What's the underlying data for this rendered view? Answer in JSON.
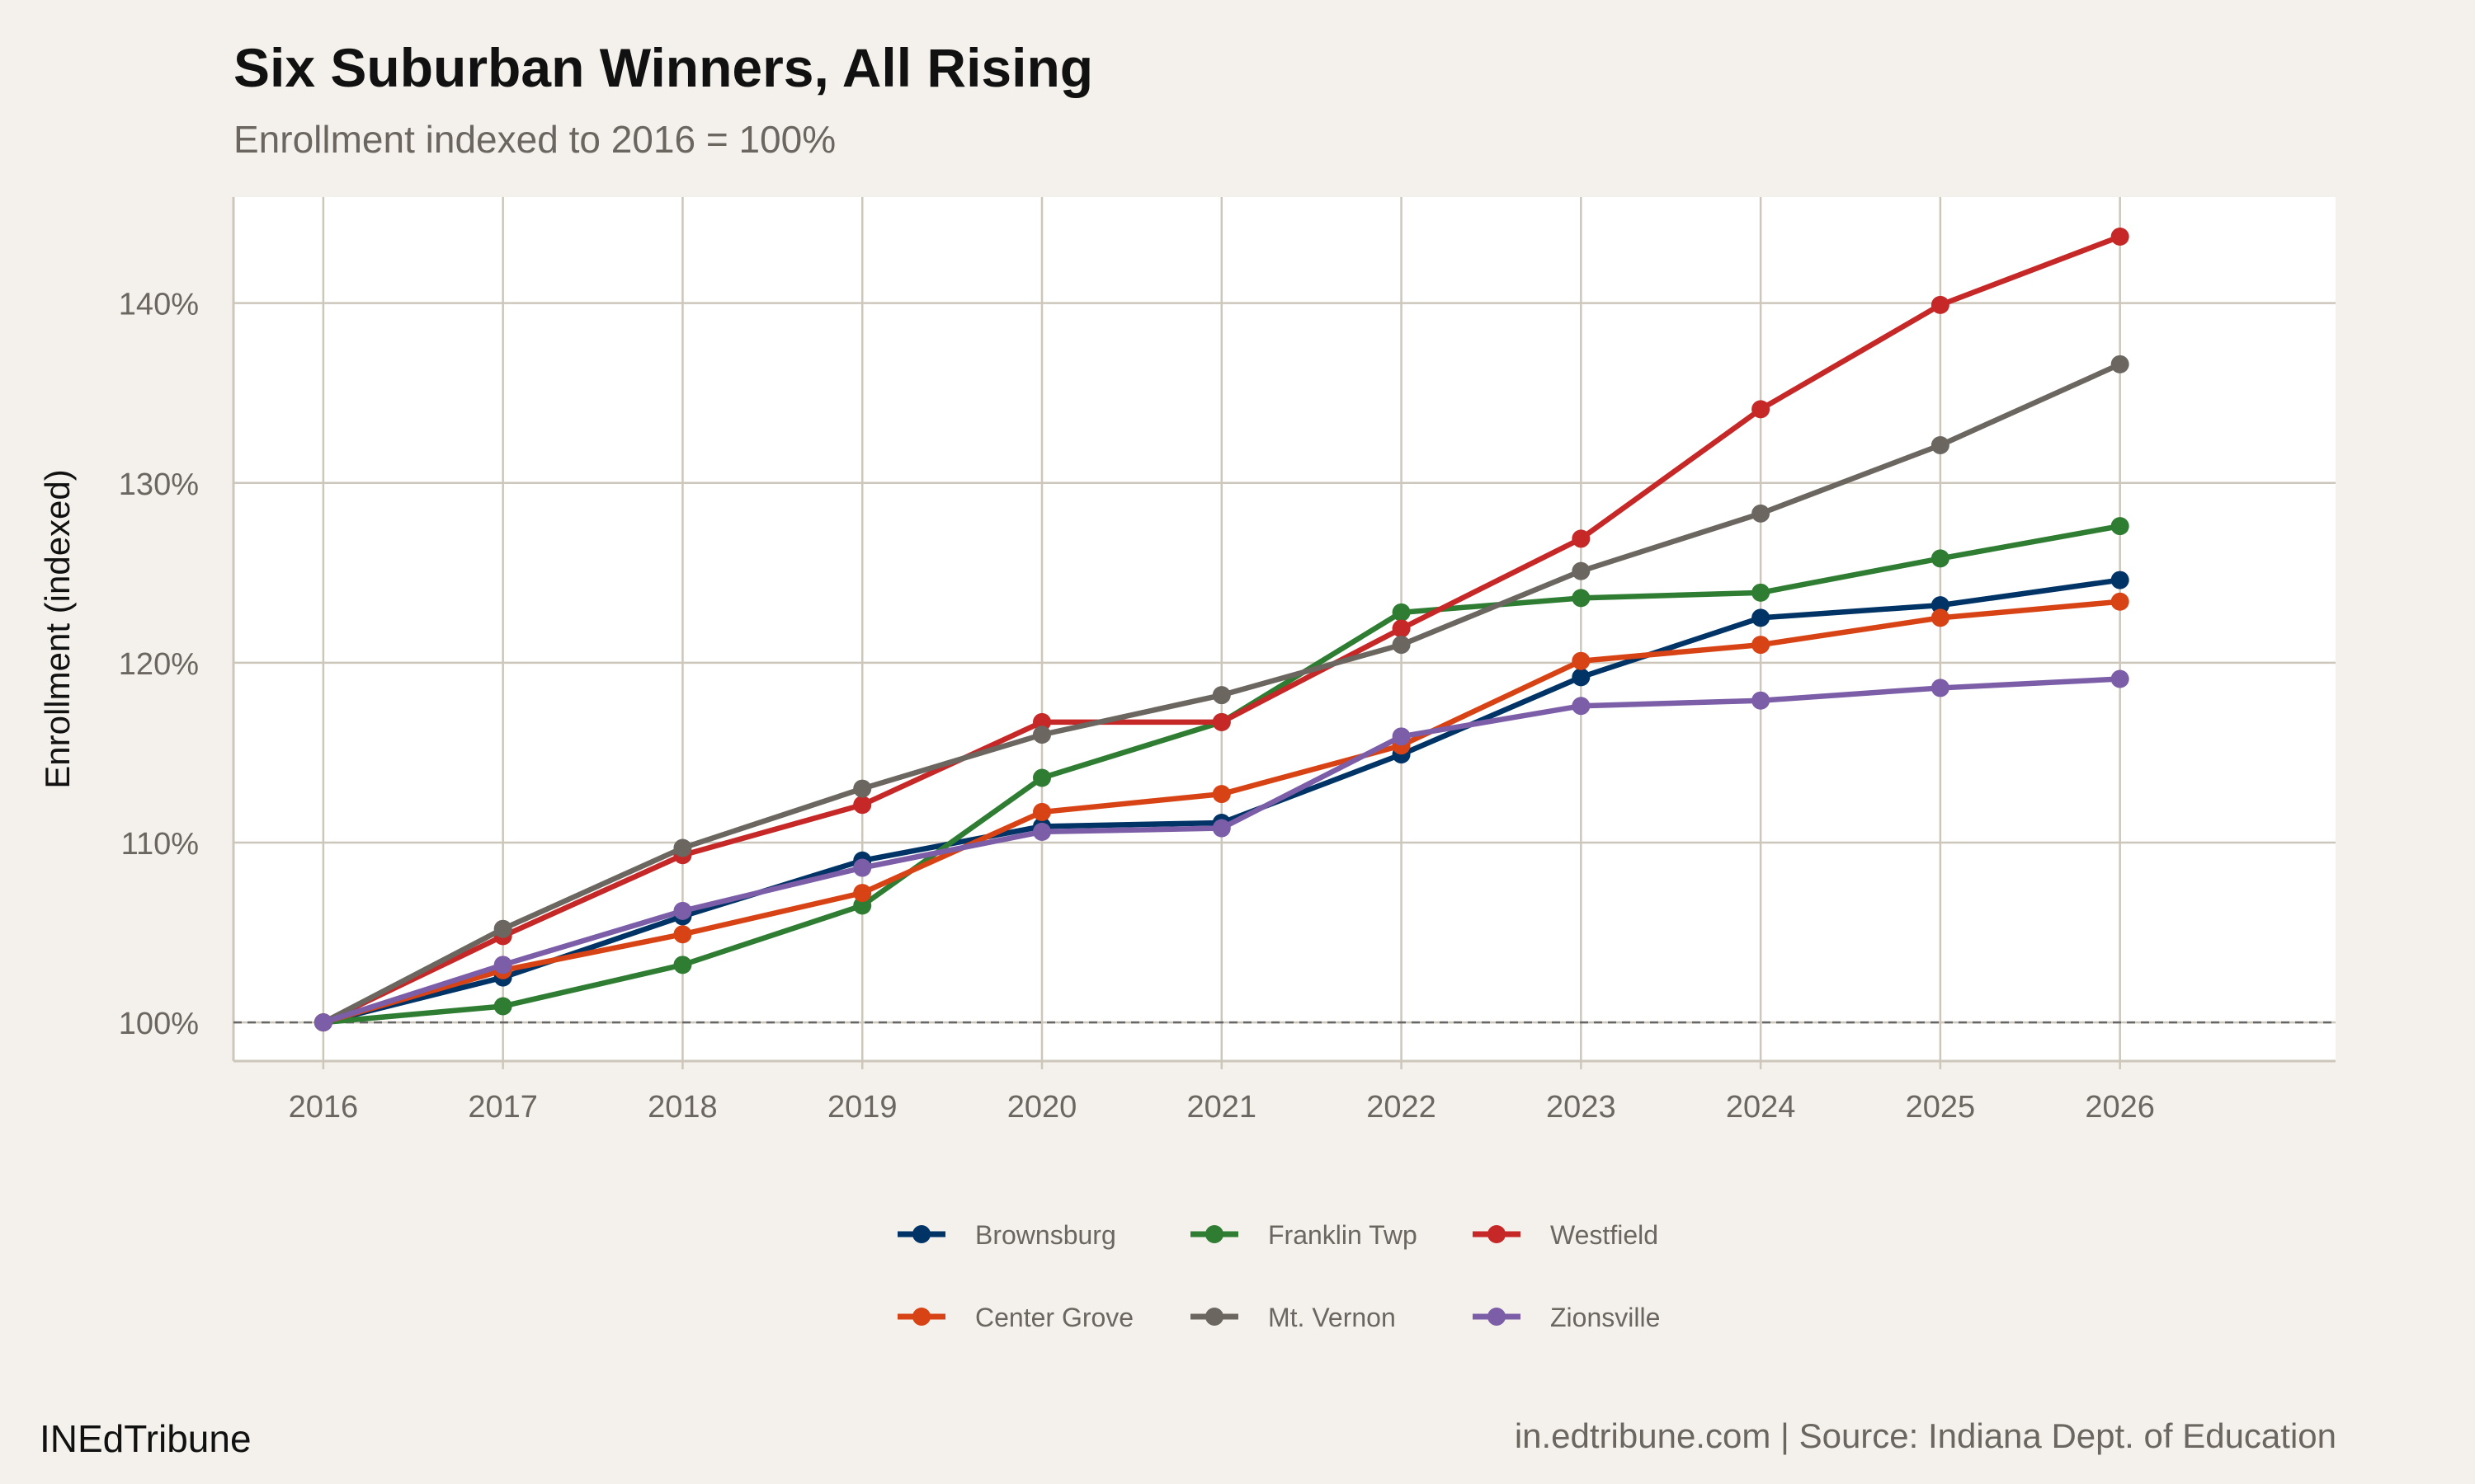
{
  "title": "Six Suburban Winners, All Rising",
  "subtitle": "Enrollment indexed to 2016 = 100%",
  "footer": {
    "brand": "INEdTribune",
    "source": "in.edtribune.com | Source: Indiana Dept. of Education"
  },
  "chart_data": {
    "type": "line",
    "title": "Six Suburban Winners, All Rising",
    "subtitle": "Enrollment indexed to 2016 = 100%",
    "xlabel": "",
    "ylabel": "Enrollment (indexed)",
    "x": [
      2016,
      2017,
      2018,
      2019,
      2020,
      2021,
      2022,
      2023,
      2024,
      2025,
      2026
    ],
    "x_tick_labels": [
      "2016",
      "2017",
      "2018",
      "2019",
      "2020",
      "2021",
      "2022",
      "2023",
      "2024",
      "2025",
      "2026"
    ],
    "xlim": [
      2015.5,
      2027.2
    ],
    "ylim": [
      97.85,
      145.9
    ],
    "y_ticks": [
      100,
      110,
      120,
      130,
      140
    ],
    "y_tick_labels": [
      "100%",
      "110%",
      "120%",
      "130%",
      "140%"
    ],
    "reference_line": {
      "y": 100,
      "style": "dashed",
      "color": "#666666"
    },
    "grid": true,
    "legend_placement": "bottom",
    "series": [
      {
        "name": "Brownsburg",
        "color": "#003366",
        "values": [
          100,
          102.5,
          105.9,
          109.0,
          110.9,
          111.1,
          114.9,
          119.2,
          122.5,
          123.2,
          124.6
        ]
      },
      {
        "name": "Franklin Twp",
        "color": "#2e7d32",
        "values": [
          100,
          100.9,
          103.2,
          106.5,
          113.6,
          116.7,
          122.8,
          123.6,
          123.9,
          125.8,
          127.6
        ]
      },
      {
        "name": "Westfield",
        "color": "#c62828",
        "values": [
          100,
          104.8,
          109.3,
          112.1,
          116.7,
          116.7,
          121.9,
          126.9,
          134.1,
          139.9,
          143.7
        ]
      },
      {
        "name": "Center Grove",
        "color": "#d84315",
        "values": [
          100,
          102.9,
          104.9,
          107.2,
          111.7,
          112.7,
          115.4,
          120.1,
          121.0,
          122.5,
          123.4
        ]
      },
      {
        "name": "Mt. Vernon",
        "color": "#6b6660",
        "values": [
          100,
          105.2,
          109.7,
          113.0,
          116.0,
          118.2,
          121.0,
          125.1,
          128.3,
          132.1,
          136.6
        ]
      },
      {
        "name": "Zionsville",
        "color": "#7b5ea7",
        "values": [
          100,
          103.2,
          106.2,
          108.6,
          110.6,
          110.8,
          115.9,
          117.6,
          117.9,
          118.6,
          119.1
        ]
      }
    ]
  }
}
